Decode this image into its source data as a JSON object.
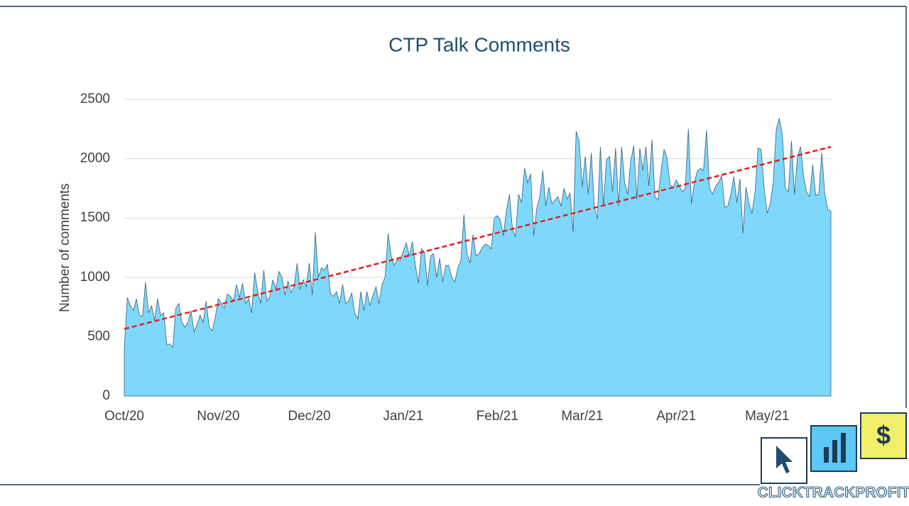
{
  "chart_data": {
    "type": "area",
    "title": "CTP Talk Comments",
    "y_label": "Number of comments",
    "categories": [
      "Oct/20",
      null,
      null,
      null,
      null,
      null,
      null,
      null,
      null,
      null,
      null,
      null,
      null,
      null,
      null,
      null,
      null,
      null,
      null,
      null,
      null,
      null,
      null,
      null,
      null,
      null,
      null,
      null,
      null,
      null,
      null,
      "Nov/20",
      null,
      null,
      null,
      null,
      null,
      null,
      null,
      null,
      null,
      null,
      null,
      null,
      null,
      null,
      null,
      null,
      null,
      null,
      null,
      null,
      null,
      null,
      null,
      null,
      null,
      null,
      null,
      null,
      null,
      "Dec/20",
      null,
      null,
      null,
      null,
      null,
      null,
      null,
      null,
      null,
      null,
      null,
      null,
      null,
      null,
      null,
      null,
      null,
      null,
      null,
      null,
      null,
      null,
      null,
      null,
      null,
      null,
      null,
      null,
      null,
      null,
      "Jan/21",
      null,
      null,
      null,
      null,
      null,
      null,
      null,
      null,
      null,
      null,
      null,
      null,
      null,
      null,
      null,
      null,
      null,
      null,
      null,
      null,
      null,
      null,
      null,
      null,
      null,
      null,
      null,
      null,
      null,
      null,
      "Feb/21",
      null,
      null,
      null,
      null,
      null,
      null,
      null,
      null,
      null,
      null,
      null,
      null,
      null,
      null,
      null,
      null,
      null,
      null,
      null,
      null,
      null,
      null,
      null,
      null,
      null,
      null,
      null,
      "Mar/21",
      null,
      null,
      null,
      null,
      null,
      null,
      null,
      null,
      null,
      null,
      null,
      null,
      null,
      null,
      null,
      null,
      null,
      null,
      null,
      null,
      null,
      null,
      null,
      null,
      null,
      null,
      null,
      null,
      null,
      null,
      "Apr/21",
      null,
      null,
      null,
      null,
      null,
      null,
      null,
      null,
      null,
      null,
      null,
      null,
      null,
      null,
      null,
      null,
      null,
      null,
      null,
      null,
      null,
      null,
      null,
      null,
      null,
      null,
      null,
      null,
      null,
      "May/21",
      null,
      null,
      null,
      null,
      null,
      null,
      null,
      null,
      null,
      null,
      null,
      null,
      null,
      null,
      null,
      null,
      null,
      null,
      null,
      null,
      null
    ],
    "series": [
      {
        "color": "#7dd8fb",
        "values": [
          400,
          830,
          760,
          720,
          820,
          680,
          670,
          960,
          700,
          760,
          640,
          820,
          680,
          700,
          430,
          440,
          410,
          740,
          780,
          620,
          580,
          620,
          720,
          540,
          600,
          680,
          620,
          800,
          580,
          550,
          660,
          820,
          780,
          740,
          860,
          840,
          800,
          940,
          830,
          950,
          780,
          820,
          700,
          1040,
          880,
          780,
          1060,
          800,
          840,
          980,
          900,
          1050,
          1000,
          850,
          970,
          870,
          920,
          1120,
          900,
          980,
          920,
          1120,
          850,
          1380,
          1000,
          1080,
          1060,
          1110,
          860,
          840,
          880,
          780,
          940,
          780,
          800,
          870,
          700,
          650,
          880,
          720,
          880,
          760,
          850,
          920,
          780,
          940,
          1000,
          1370,
          1180,
          1100,
          1150,
          1140,
          1220,
          1290,
          1180,
          1300,
          1100,
          950,
          1240,
          1210,
          930,
          1180,
          1200,
          1000,
          1160,
          960,
          1100,
          1100,
          1000,
          960,
          1080,
          1140,
          1530,
          1200,
          1120,
          1360,
          1180,
          1200,
          1250,
          1280,
          1270,
          1240,
          1500,
          1520,
          1480,
          1350,
          1560,
          1700,
          1410,
          1340,
          1700,
          1630,
          1920,
          1800,
          1870,
          1350,
          1580,
          1680,
          1900,
          1600,
          1760,
          1620,
          1650,
          1680,
          1600,
          1750,
          1660,
          1710,
          1380,
          2230,
          2150,
          1760,
          2020,
          1700,
          2050,
          1600,
          1490,
          2100,
          1600,
          1990,
          2020,
          1720,
          2090,
          1600,
          2100,
          1800,
          1700,
          1980,
          2110,
          1660,
          2090,
          1900,
          2100,
          1770,
          2160,
          1680,
          1650,
          1900,
          2080,
          2000,
          1780,
          1760,
          1820,
          1770,
          1720,
          1750,
          2250,
          1620,
          1800,
          1900,
          1920,
          1900,
          2240,
          1750,
          1700,
          1770,
          1800,
          1860,
          1590,
          1600,
          1700,
          1850,
          1630,
          1830,
          1370,
          1760,
          1620,
          1540,
          1720,
          2090,
          2080,
          1750,
          1540,
          1620,
          1800,
          2250,
          2340,
          2200,
          1750,
          1720,
          2150,
          1700,
          2020,
          2100,
          1850,
          1720,
          1680,
          1950,
          1690,
          1700,
          2050,
          1700,
          1570,
          1560
        ]
      }
    ],
    "trend": {
      "color": "#e02020",
      "values": [
        565,
        2100
      ]
    },
    "ylim": [
      0,
      2500
    ],
    "yticks": [
      0,
      500,
      1000,
      1500,
      2000,
      2500
    ],
    "grid": true
  },
  "logo": "CLICKTRACKPROFIT"
}
